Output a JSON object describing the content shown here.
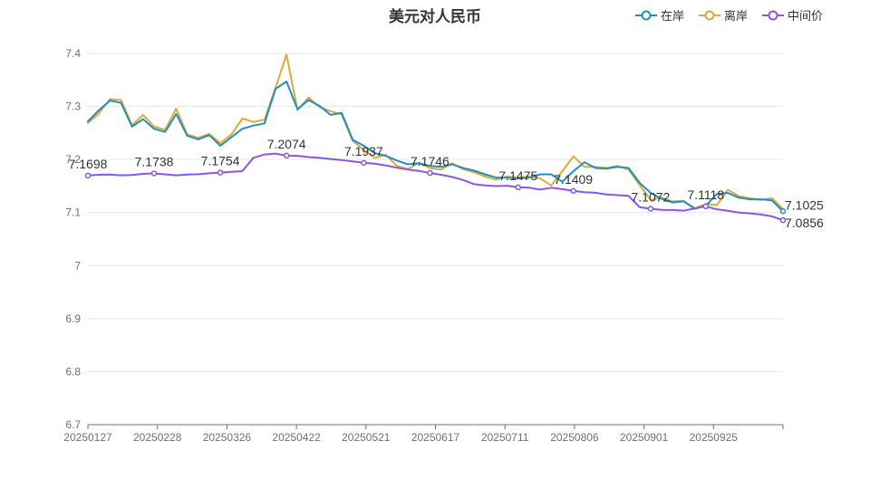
{
  "chart_data": {
    "type": "line",
    "title": "美元对人民币",
    "xlabel": "",
    "ylabel": "",
    "ylim": [
      6.7,
      7.4
    ],
    "y_ticks": [
      "6.7",
      "6.8",
      "6.9",
      "7",
      "7.1",
      "7.2",
      "7.3",
      "7.4"
    ],
    "x_tick_labels": [
      "20250127",
      "20250228",
      "20250326",
      "20250422",
      "20250521",
      "20250617",
      "20250711",
      "20250806",
      "20250901",
      "20250925"
    ],
    "grid": true,
    "legend_position": "top-right",
    "series": [
      {
        "name": "在岸",
        "color": "#1f8fc4",
        "values": [
          7.272,
          7.293,
          7.311,
          7.307,
          7.262,
          7.276,
          7.258,
          7.252,
          7.286,
          7.245,
          7.238,
          7.246,
          7.226,
          7.242,
          7.258,
          7.264,
          7.268,
          7.333,
          7.347,
          7.295,
          7.312,
          7.301,
          7.284,
          7.288,
          7.237,
          7.226,
          7.212,
          7.207,
          7.198,
          7.191,
          7.193,
          7.188,
          7.186,
          7.191,
          7.184,
          7.179,
          7.172,
          7.166,
          7.166,
          7.164,
          7.166,
          7.172,
          7.172,
          7.158,
          7.178,
          7.195,
          7.184,
          7.183,
          7.186,
          7.184,
          7.156,
          7.137,
          7.126,
          7.119,
          7.121,
          7.107,
          7.113,
          7.135,
          7.137,
          7.128,
          7.125,
          7.125,
          7.123,
          7.1025
        ]
      },
      {
        "name": "离岸",
        "color": "#e2a83a",
        "values": [
          7.269,
          7.287,
          7.314,
          7.312,
          7.265,
          7.284,
          7.262,
          7.256,
          7.296,
          7.247,
          7.241,
          7.248,
          7.231,
          7.247,
          7.277,
          7.271,
          7.275,
          7.335,
          7.398,
          7.293,
          7.317,
          7.299,
          7.291,
          7.285,
          7.235,
          7.218,
          7.203,
          7.209,
          7.188,
          7.182,
          7.194,
          7.184,
          7.181,
          7.193,
          7.182,
          7.176,
          7.168,
          7.162,
          7.168,
          7.166,
          7.168,
          7.164,
          7.151,
          7.178,
          7.206,
          7.186,
          7.186,
          7.184,
          7.188,
          7.181,
          7.152,
          7.124,
          7.128,
          7.121,
          7.122,
          7.108,
          7.116,
          7.114,
          7.143,
          7.131,
          7.127,
          7.124,
          7.127,
          7.107
        ]
      },
      {
        "name": "中间价",
        "color": "#8957e5",
        "values": [
          7.1698,
          7.1712,
          7.1718,
          7.1702,
          7.1709,
          7.1729,
          7.1738,
          7.1721,
          7.1702,
          7.1715,
          7.1722,
          7.1739,
          7.1754,
          7.1768,
          7.1781,
          7.2032,
          7.2095,
          7.2112,
          7.2074,
          7.2069,
          7.2045,
          7.2034,
          7.2009,
          7.1989,
          7.1965,
          7.1937,
          7.1921,
          7.1888,
          7.1846,
          7.1812,
          7.1785,
          7.1746,
          7.1712,
          7.1672,
          7.1615,
          7.1535,
          7.1512,
          7.1498,
          7.1505,
          7.1475,
          7.1468,
          7.1432,
          7.1468,
          7.1441,
          7.1409,
          7.1384,
          7.1372,
          7.1341,
          7.1328,
          7.1314,
          7.1102,
          7.1072,
          7.1051,
          7.1048,
          7.1036,
          7.1079,
          7.1118,
          7.1062,
          7.1032,
          7.1001,
          7.0985,
          7.0962,
          7.0928,
          7.0856
        ]
      }
    ],
    "data_labels": [
      {
        "series": "中间价",
        "index": 0,
        "text": "7.1698"
      },
      {
        "series": "中间价",
        "index": 6,
        "text": "7.1738"
      },
      {
        "series": "中间价",
        "index": 12,
        "text": "7.1754"
      },
      {
        "series": "中间价",
        "index": 18,
        "text": "7.2074"
      },
      {
        "series": "中间价",
        "index": 25,
        "text": "7.1937"
      },
      {
        "series": "中间价",
        "index": 31,
        "text": "7.1746"
      },
      {
        "series": "中间价",
        "index": 39,
        "text": "7.1475"
      },
      {
        "series": "中间价",
        "index": 44,
        "text": "7.1409"
      },
      {
        "series": "中间价",
        "index": 51,
        "text": "7.1072"
      },
      {
        "series": "中间价",
        "index": 56,
        "text": "7.1118"
      },
      {
        "series": "在岸",
        "index": 63,
        "text": "7.1025"
      },
      {
        "series": "中间价",
        "index": 63,
        "text": "7.0856"
      }
    ]
  }
}
